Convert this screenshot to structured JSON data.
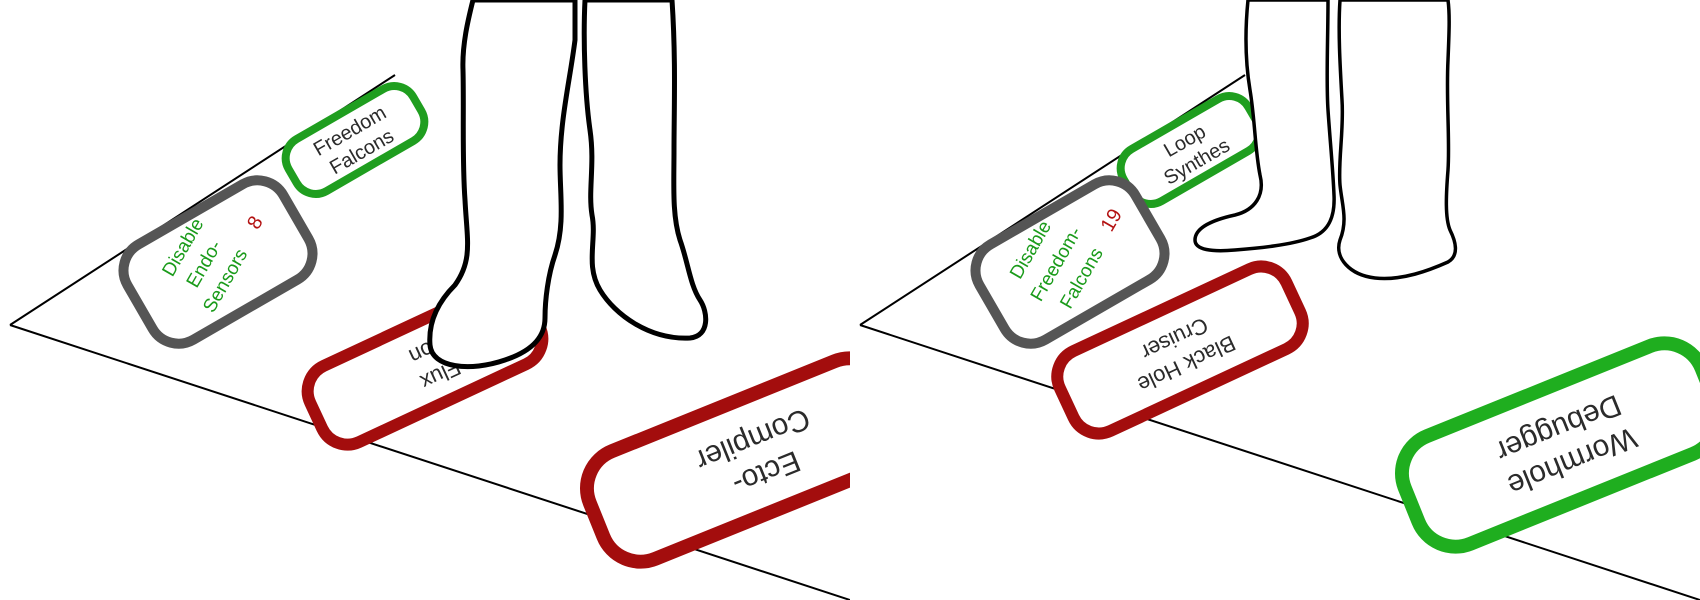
{
  "panels": [
    {
      "id": "left",
      "buttons": {
        "top": {
          "lines": [
            "Freedom",
            "Falcons"
          ],
          "border_color": "#1f9e1f"
        },
        "disable": {
          "lines": [
            "Disable",
            "Endo-",
            "Sensors"
          ],
          "count": "8",
          "border_color": "#555555"
        },
        "middle": {
          "lines": [
            "Flux",
            "Con"
          ],
          "border_color": "#a30d0d"
        },
        "bottom": {
          "lines": [
            "Ecto-",
            "Compiler"
          ],
          "border_color": "#a30d0d"
        }
      }
    },
    {
      "id": "right",
      "buttons": {
        "top": {
          "lines": [
            "Loop",
            "Synthes"
          ],
          "border_color": "#1f9e1f"
        },
        "disable": {
          "lines": [
            "Disable",
            "Freedom-",
            "Falcons"
          ],
          "count": "19",
          "border_color": "#555555"
        },
        "middle": {
          "lines": [
            "Black Hole",
            "Cruiser"
          ],
          "border_color": "#a30d0d"
        },
        "bottom": {
          "lines": [
            "Wormhole",
            "Debugger"
          ],
          "border_color": "#1fae1f"
        }
      }
    }
  ],
  "colors": {
    "label_text": "#2b2b2b",
    "disable_text": "#1a9b1a",
    "count_text": "#b31212",
    "floor_line": "#000000",
    "figure_outline": "#000000"
  }
}
